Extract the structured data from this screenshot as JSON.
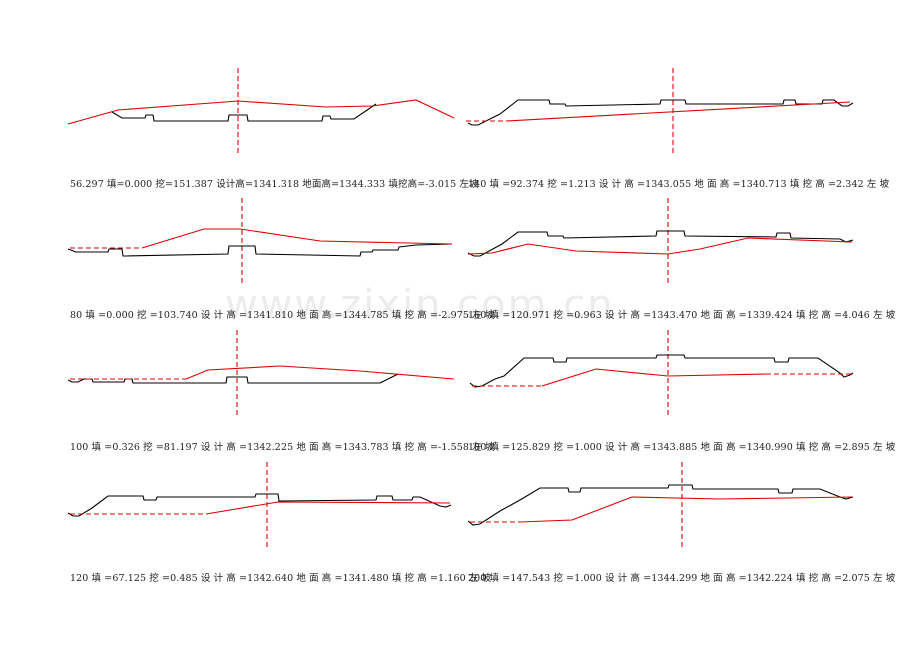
{
  "colors": {
    "road": "#000000",
    "ground": "#e00000",
    "centerline": "#e00000"
  },
  "watermark": "www.zixin.com.cn",
  "sections": [
    {
      "id": "s1",
      "caption": "56.297  填=0.000 挖=151.387 设计高=1341.318 地面高=1344.333 填挖高=-3.015 左坡"
    },
    {
      "id": "s2",
      "caption": "140  填 =92.374 挖 =1.213 设 计 高 =1343.055 地 面 高 =1340.713 填 挖 高 =2.342 左 坡"
    },
    {
      "id": "s3",
      "caption": "80  填 =0.000 挖 =103.740 设 计 高 =1341.810 地 面 高 =1344.785 填 挖 高 =-2.975 左 坡"
    },
    {
      "id": "s4",
      "caption": "160  填 =120.971 挖 =0.963 设 计 高 =1343.470 地 面 高 =1339.424 填 挖 高 =4.046 左 坡"
    },
    {
      "id": "s5",
      "caption": "100  填 =0.326 挖 =81.197 设 计 高 =1342.225 地 面 高 =1343.783 填 挖 高 =-1.558 左 坡"
    },
    {
      "id": "s6",
      "caption": "180  填 =125.829 挖 =1.000 设 计 高 =1343.885 地 面 高 =1340.990 填 挖 高 =2.895 左 坡"
    },
    {
      "id": "s7",
      "caption": "120  填 =67.125 挖 =0.485 设 计 高 =1342.640 地 面 高 =1341.480 填 挖 高 =1.160 左 坡"
    },
    {
      "id": "s8",
      "caption": "200  填 =147.543 挖 =1.000 设 计 高 =1344.299 地 面 高 =1342.224 填 挖 高 =2.075 左 坡"
    }
  ]
}
